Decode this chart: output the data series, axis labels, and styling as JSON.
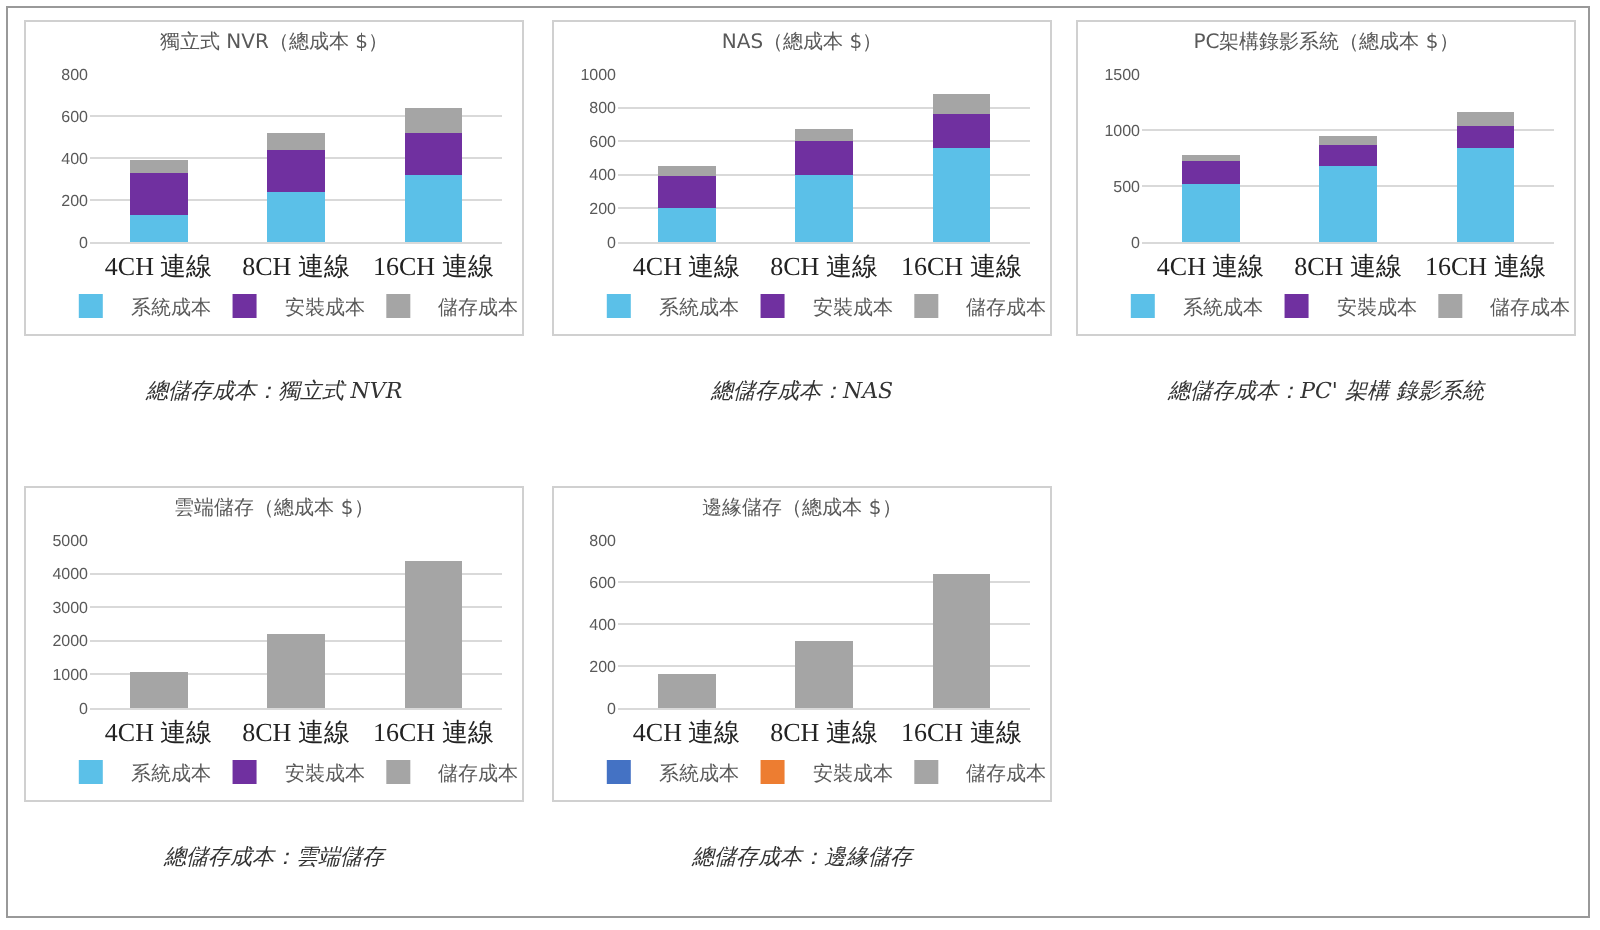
{
  "chart_data": [
    {
      "type": "bar",
      "stacked": true,
      "title": "獨立式 NVR（總成本 $）",
      "categories": [
        "4CH 連線",
        "8CH 連線",
        "16CH 連線"
      ],
      "ylim": [
        0,
        800
      ],
      "yticks": [
        0,
        200,
        400,
        600,
        800
      ],
      "grid": "y",
      "legend": "bottom",
      "annotations": [
        "總儲存成本：獨立式 NVR"
      ],
      "series": [
        {
          "name": "系統成本",
          "color": "#5bc0e8",
          "values": [
            130,
            240,
            320
          ]
        },
        {
          "name": "安裝成本",
          "color": "#7030a0",
          "values": [
            200,
            200,
            200
          ]
        },
        {
          "name": "儲存成本",
          "color": "#a5a5a5",
          "values": [
            60,
            80,
            120
          ]
        }
      ]
    },
    {
      "type": "bar",
      "stacked": true,
      "title": "NAS（總成本 $）",
      "categories": [
        "4CH 連線",
        "8CH 連線",
        "16CH 連線"
      ],
      "ylim": [
        0,
        1000
      ],
      "yticks": [
        0,
        200,
        400,
        600,
        800,
        1000
      ],
      "grid": "y",
      "legend": "bottom",
      "annotations": [
        "總儲存成本：NAS"
      ],
      "series": [
        {
          "name": "系統成本",
          "color": "#5bc0e8",
          "values": [
            200,
            400,
            560
          ]
        },
        {
          "name": "安裝成本",
          "color": "#7030a0",
          "values": [
            190,
            200,
            200
          ]
        },
        {
          "name": "儲存成本",
          "color": "#a5a5a5",
          "values": [
            60,
            70,
            120
          ]
        }
      ]
    },
    {
      "type": "bar",
      "stacked": true,
      "title": "PC架構錄影系統（總成本 $）",
      "categories": [
        "4CH 連線",
        "8CH 連線",
        "16CH 連線"
      ],
      "ylim": [
        0,
        1500
      ],
      "yticks": [
        0,
        500,
        1000,
        1500
      ],
      "grid": "y",
      "legend": "bottom",
      "annotations": [
        "總儲存成本：PC' 架構 錄影系統"
      ],
      "series": [
        {
          "name": "系統成本",
          "color": "#5bc0e8",
          "values": [
            520,
            680,
            840
          ]
        },
        {
          "name": "安裝成本",
          "color": "#7030a0",
          "values": [
            200,
            190,
            200
          ]
        },
        {
          "name": "儲存成本",
          "color": "#a5a5a5",
          "values": [
            60,
            80,
            120
          ]
        }
      ]
    },
    {
      "type": "bar",
      "stacked": true,
      "title": "雲端儲存（總成本 $）",
      "categories": [
        "4CH 連線",
        "8CH 連線",
        "16CH 連線"
      ],
      "ylim": [
        0,
        5000
      ],
      "yticks": [
        0,
        1000,
        2000,
        3000,
        4000,
        5000
      ],
      "grid": "y",
      "legend": "bottom",
      "annotations": [
        "總儲存成本：雲端儲存"
      ],
      "series": [
        {
          "name": "系統成本",
          "color": "#5bc0e8",
          "values": [
            0,
            0,
            0
          ]
        },
        {
          "name": "安裝成本",
          "color": "#7030a0",
          "values": [
            0,
            0,
            0
          ]
        },
        {
          "name": "儲存成本",
          "color": "#a5a5a5",
          "values": [
            1080,
            2200,
            4380
          ]
        }
      ]
    },
    {
      "type": "bar",
      "stacked": true,
      "title": "邊緣儲存（總成本 $）",
      "categories": [
        "4CH 連線",
        "8CH 連線",
        "16CH 連線"
      ],
      "ylim": [
        0,
        800
      ],
      "yticks": [
        0,
        200,
        400,
        600,
        800
      ],
      "grid": "y",
      "legend": "bottom",
      "annotations": [
        "總儲存成本：邊緣儲存"
      ],
      "series": [
        {
          "name": "系統成本",
          "color": "#4472c4",
          "values": [
            0,
            0,
            0
          ]
        },
        {
          "name": "安裝成本",
          "color": "#ed7d31",
          "values": [
            0,
            0,
            0
          ]
        },
        {
          "name": "儲存成本",
          "color": "#a5a5a5",
          "values": [
            160,
            320,
            640
          ]
        }
      ]
    }
  ]
}
